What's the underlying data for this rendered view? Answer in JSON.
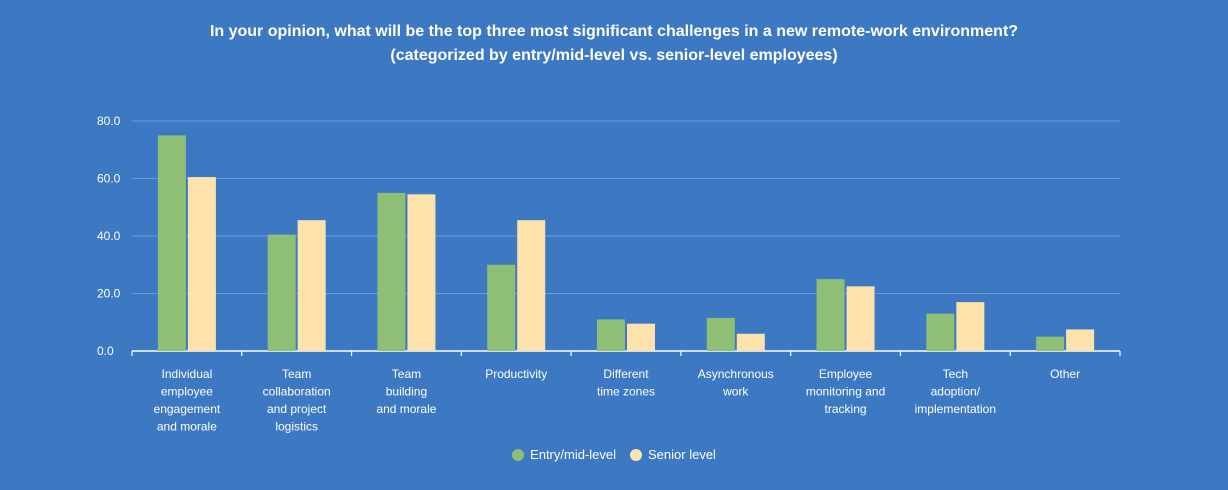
{
  "chart_data": {
    "type": "bar",
    "title": "In your opinion, what will be the top three most significant challenges in a new remote-work environment?",
    "subtitle": "(categorized by entry/mid-level vs. senior-level employees)",
    "categories": [
      [
        "Individual",
        "employee",
        "engagement",
        "and morale"
      ],
      [
        "Team",
        "collaboration",
        "and project",
        "logistics"
      ],
      [
        "Team",
        "building",
        "and morale"
      ],
      [
        "Productivity"
      ],
      [
        "Different",
        "time zones"
      ],
      [
        "Asynchronous",
        "work"
      ],
      [
        "Employee",
        "monitoring and",
        "tracking"
      ],
      [
        "Tech",
        "adoption/",
        "implementation"
      ],
      [
        "Other"
      ]
    ],
    "series": [
      {
        "name": "Entry/mid-level",
        "color": "#8fbf74",
        "values": [
          75,
          40.5,
          55,
          30,
          11,
          11.5,
          25,
          13,
          5
        ]
      },
      {
        "name": "Senior level",
        "color": "#fde3ab",
        "values": [
          60.5,
          45.5,
          54.5,
          45.5,
          9.5,
          6,
          22.5,
          17,
          7.5
        ]
      }
    ],
    "yticks": [
      "0.0",
      "20.0",
      "40.0",
      "60.0",
      "80.0"
    ],
    "ylim": [
      0,
      80
    ],
    "grid": true,
    "legend": "bottom-center"
  }
}
